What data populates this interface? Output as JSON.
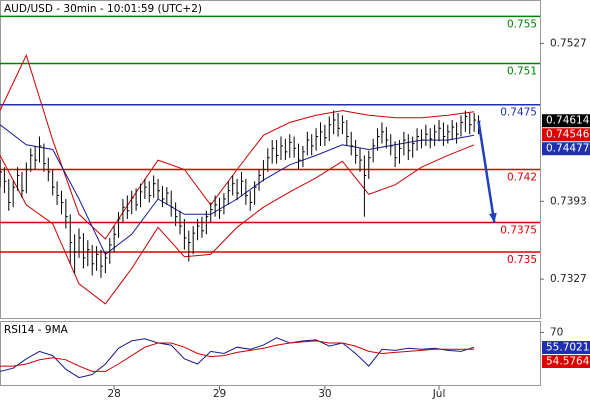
{
  "chart_data": [
    {
      "type": "ohlc",
      "title": "AUD/USD - 30min - 10:01:59 (UTC+2)",
      "xlim": [
        0,
        123
      ],
      "ylim": [
        0.7294,
        0.7563
      ],
      "yticks": [
        0.7527,
        0.7393,
        0.7327
      ],
      "bars": {
        "color": "#000000",
        "high": [
          0.7428,
          0.7422,
          0.7412,
          0.741,
          0.7422,
          0.7418,
          0.7426,
          0.7438,
          0.744,
          0.7448,
          0.7442,
          0.743,
          0.742,
          0.741,
          0.7402,
          0.7395,
          0.7382,
          0.7365,
          0.737,
          0.7366,
          0.736,
          0.7356,
          0.7355,
          0.7352,
          0.735,
          0.7362,
          0.7372,
          0.7384,
          0.7395,
          0.7398,
          0.7402,
          0.7404,
          0.7408,
          0.7412,
          0.741,
          0.7415,
          0.7412,
          0.7406,
          0.7405,
          0.7402,
          0.7392,
          0.7385,
          0.7378,
          0.7368,
          0.7372,
          0.7378,
          0.738,
          0.7385,
          0.7392,
          0.7398,
          0.7396,
          0.74,
          0.741,
          0.7415,
          0.7412,
          0.7418,
          0.7412,
          0.7402,
          0.741,
          0.742,
          0.7428,
          0.7438,
          0.7445,
          0.7445,
          0.7448,
          0.7446,
          0.745,
          0.7448,
          0.7442,
          0.744,
          0.7452,
          0.745,
          0.7455,
          0.746,
          0.7458,
          0.7465,
          0.747,
          0.7468,
          0.7466,
          0.7462,
          0.7452,
          0.7445,
          0.7438,
          0.7432,
          0.7436,
          0.7446,
          0.7455,
          0.746,
          0.7456,
          0.745,
          0.7444,
          0.7445,
          0.7452,
          0.745,
          0.7448,
          0.7455,
          0.7454,
          0.7458,
          0.7455,
          0.7458,
          0.7462,
          0.746,
          0.7458,
          0.7462,
          0.746,
          0.7466,
          0.747,
          0.7468,
          0.7468,
          0.7466
        ],
        "low": [
          0.7405,
          0.74,
          0.7385,
          0.7388,
          0.7402,
          0.7396,
          0.74,
          0.7418,
          0.742,
          0.7426,
          0.7418,
          0.741,
          0.7398,
          0.739,
          0.7382,
          0.737,
          0.734,
          0.7332,
          0.7345,
          0.7336,
          0.7338,
          0.733,
          0.7334,
          0.7328,
          0.7332,
          0.734,
          0.735,
          0.7362,
          0.7375,
          0.7378,
          0.7382,
          0.7385,
          0.7388,
          0.7395,
          0.7392,
          0.7396,
          0.7395,
          0.7388,
          0.739,
          0.738,
          0.7372,
          0.7365,
          0.7352,
          0.7342,
          0.7348,
          0.736,
          0.7362,
          0.7365,
          0.7375,
          0.738,
          0.7378,
          0.7382,
          0.739,
          0.7398,
          0.7394,
          0.7398,
          0.739,
          0.7385,
          0.739,
          0.7402,
          0.741,
          0.7418,
          0.7425,
          0.7425,
          0.7428,
          0.7428,
          0.743,
          0.743,
          0.742,
          0.7422,
          0.7432,
          0.7432,
          0.7436,
          0.744,
          0.744,
          0.7444,
          0.745,
          0.7448,
          0.745,
          0.744,
          0.7432,
          0.7425,
          0.7418,
          0.738,
          0.7412,
          0.7426,
          0.7436,
          0.7442,
          0.7438,
          0.7432,
          0.7422,
          0.7425,
          0.7432,
          0.7428,
          0.743,
          0.7436,
          0.7438,
          0.744,
          0.7438,
          0.744,
          0.7444,
          0.744,
          0.7442,
          0.7445,
          0.7442,
          0.7448,
          0.7452,
          0.745,
          0.7452,
          0.745
        ],
        "close": [
          0.7418,
          0.741,
          0.7392,
          0.7405,
          0.7415,
          0.7402,
          0.742,
          0.7432,
          0.7428,
          0.744,
          0.7425,
          0.7418,
          0.7405,
          0.7398,
          0.7392,
          0.738,
          0.7358,
          0.735,
          0.7362,
          0.7345,
          0.7352,
          0.734,
          0.7348,
          0.7338,
          0.7345,
          0.7356,
          0.7365,
          0.7378,
          0.7388,
          0.7385,
          0.7396,
          0.739,
          0.7401,
          0.7405,
          0.7398,
          0.7408,
          0.7402,
          0.7395,
          0.74,
          0.7388,
          0.738,
          0.7372,
          0.7362,
          0.7358,
          0.7366,
          0.7372,
          0.7368,
          0.738,
          0.7386,
          0.739,
          0.7385,
          0.7395,
          0.7402,
          0.7408,
          0.74,
          0.741,
          0.7398,
          0.7392,
          0.7405,
          0.7415,
          0.742,
          0.743,
          0.7438,
          0.7432,
          0.744,
          0.7435,
          0.7443,
          0.7438,
          0.7428,
          0.7435,
          0.7445,
          0.744,
          0.7448,
          0.7452,
          0.7447,
          0.7458,
          0.7462,
          0.7455,
          0.746,
          0.7448,
          0.744,
          0.7432,
          0.7428,
          0.7415,
          0.743,
          0.744,
          0.7448,
          0.7452,
          0.7445,
          0.744,
          0.743,
          0.7438,
          0.7445,
          0.7436,
          0.7442,
          0.7448,
          0.7445,
          0.745,
          0.7446,
          0.7452,
          0.7455,
          0.7448,
          0.7452,
          0.7456,
          0.745,
          0.746,
          0.7465,
          0.7458,
          0.7462,
          0.7461
        ]
      },
      "series": [
        {
          "color": "#cc0000",
          "x": [
            0,
            6,
            12,
            18,
            24,
            30,
            36,
            42,
            48,
            54,
            60,
            66,
            72,
            78,
            84,
            90,
            96,
            102,
            108
          ],
          "values": [
            0.747,
            0.7517,
            0.7445,
            0.7382,
            0.7361,
            0.7395,
            0.7428,
            0.742,
            0.739,
            0.742,
            0.7449,
            0.746,
            0.7466,
            0.747,
            0.7466,
            0.7464,
            0.7464,
            0.7466,
            0.7469
          ]
        },
        {
          "color": "#cc0000",
          "x": [
            0,
            6,
            12,
            18,
            24,
            30,
            36,
            42,
            48,
            54,
            60,
            66,
            72,
            78,
            84,
            90,
            96,
            102,
            108
          ],
          "values": [
            0.7432,
            0.739,
            0.7374,
            0.7323,
            0.7306,
            0.7336,
            0.7371,
            0.7346,
            0.7348,
            0.7371,
            0.7388,
            0.7401,
            0.7413,
            0.7427,
            0.7399,
            0.7407,
            0.7422,
            0.7432,
            0.7441
          ]
        },
        {
          "color": "#1a1a9a",
          "x": [
            0,
            6,
            12,
            18,
            24,
            30,
            36,
            42,
            48,
            54,
            60,
            66,
            72,
            78,
            84,
            90,
            96,
            102,
            108
          ],
          "values": [
            0.7458,
            0.7441,
            0.7437,
            0.7395,
            0.7348,
            0.7365,
            0.7395,
            0.7382,
            0.7382,
            0.7395,
            0.7411,
            0.7424,
            0.7432,
            0.7441,
            0.7437,
            0.7441,
            0.7445,
            0.7445,
            0.7449
          ]
        }
      ],
      "levels": [
        {
          "value": 0.755,
          "color": "#008000"
        },
        {
          "value": 0.751,
          "color": "#008000"
        },
        {
          "value": 0.7475,
          "color": "#1f2fb0"
        },
        {
          "value": 0.742,
          "color": "#dd0000"
        },
        {
          "value": 0.7375,
          "color": "#dd0000"
        },
        {
          "value": 0.735,
          "color": "#dd0000"
        }
      ],
      "arrow": {
        "x": [
          109,
          112.6
        ],
        "y": [
          0.7461,
          0.7375
        ],
        "color": "#1f3fbf"
      },
      "price_tags": [
        {
          "value": 0.74614,
          "color": "#000000"
        },
        {
          "value": 0.74546,
          "color": "#dd0000"
        },
        {
          "value": 0.74477,
          "color": "#1f2fb0"
        }
      ]
    },
    {
      "type": "line",
      "title": "RSI14 - 9MA",
      "xlim": [
        0,
        123
      ],
      "ylim": [
        20,
        80
      ],
      "yticks": [
        70
      ],
      "xticks": [
        {
          "value": 26,
          "label": "28"
        },
        {
          "value": 50,
          "label": "29"
        },
        {
          "value": 74,
          "label": "30"
        },
        {
          "value": 100,
          "label": "Jul"
        }
      ],
      "series": [
        {
          "color": "#1a1a8a",
          "x": [
            0,
            3,
            6,
            9,
            12,
            15,
            18,
            21,
            24,
            27,
            30,
            33,
            36,
            39,
            42,
            45,
            48,
            51,
            54,
            57,
            60,
            63,
            66,
            69,
            72,
            75,
            78,
            81,
            84,
            87,
            90,
            93,
            96,
            99,
            102,
            105,
            108
          ],
          "values": [
            33,
            36,
            45,
            52,
            48,
            35,
            27,
            30,
            40,
            55,
            62,
            64,
            60,
            58,
            45,
            40,
            52,
            50,
            56,
            54,
            58,
            65,
            60,
            62,
            63,
            57,
            60,
            50,
            38,
            54,
            53,
            55,
            54,
            55,
            53,
            52,
            56
          ]
        },
        {
          "color": "#cc0000",
          "x": [
            0,
            3,
            6,
            9,
            12,
            15,
            18,
            21,
            24,
            27,
            30,
            33,
            36,
            39,
            42,
            45,
            48,
            51,
            54,
            57,
            60,
            63,
            66,
            69,
            72,
            75,
            78,
            81,
            84,
            87,
            90,
            93,
            96,
            99,
            102,
            105,
            108
          ],
          "values": [
            38,
            38,
            40,
            44,
            46,
            44,
            38,
            33,
            33,
            40,
            48,
            56,
            60,
            60,
            56,
            50,
            47,
            48,
            51,
            53,
            55,
            58,
            60,
            61,
            62,
            60,
            60,
            57,
            52,
            50,
            51,
            52,
            53,
            54,
            54,
            54,
            54
          ]
        }
      ],
      "price_tags": [
        {
          "value": 55.7021,
          "color": "#1f2fb0"
        },
        {
          "value": 54.5764,
          "color": "#dd0000"
        }
      ]
    }
  ]
}
